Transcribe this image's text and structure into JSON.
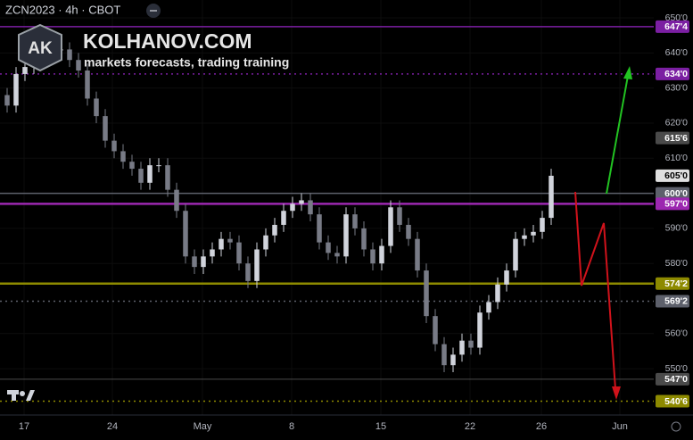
{
  "chart_data": {
    "type": "candlestick",
    "symbol": "ZCN2023 · 4h · CBOT",
    "brand": "KOLHANOV.COM",
    "brand_initials": "AK",
    "tagline": "markets forecasts, trading training",
    "x": [
      0,
      1,
      2,
      3,
      4,
      5,
      6,
      7,
      8,
      9,
      10,
      11,
      12,
      13,
      14,
      15,
      16,
      17,
      18,
      19,
      20,
      21,
      22,
      23,
      24,
      25,
      26,
      27,
      28,
      29,
      30,
      31,
      32,
      33,
      34,
      35,
      36,
      37,
      38,
      39,
      40,
      41,
      42,
      43,
      44,
      45,
      46,
      47,
      48,
      49,
      50,
      51,
      52,
      53,
      54,
      55,
      56,
      57,
      58,
      59,
      60,
      61
    ],
    "open": [
      628,
      625,
      634,
      636,
      638,
      640,
      641,
      641,
      638,
      635,
      627,
      622,
      615,
      612,
      609,
      607,
      603,
      608,
      608,
      601,
      595,
      582,
      579,
      582,
      584,
      587,
      586,
      580,
      575,
      584,
      588,
      591,
      595,
      597,
      598,
      594,
      586,
      583,
      582,
      594,
      590,
      584,
      580,
      585,
      596,
      591,
      587,
      578,
      565,
      557,
      551,
      554,
      558,
      556,
      566,
      569,
      574,
      578,
      587,
      588,
      589,
      593
    ],
    "high": [
      630,
      636,
      638,
      640,
      642,
      643,
      643,
      643,
      640,
      637,
      629,
      624,
      617,
      614,
      611,
      609,
      610,
      610,
      610,
      603,
      597,
      584,
      584,
      586,
      589,
      589,
      588,
      582,
      586,
      590,
      593,
      597,
      599,
      600,
      600,
      596,
      588,
      585,
      596,
      596,
      592,
      586,
      587,
      598,
      598,
      593,
      589,
      580,
      567,
      559,
      556,
      560,
      560,
      568,
      571,
      576,
      580,
      589,
      590,
      591,
      595,
      607
    ],
    "low": [
      623,
      623,
      632,
      634,
      636,
      638,
      639,
      636,
      633,
      625,
      620,
      613,
      610,
      607,
      605,
      601,
      601,
      606,
      599,
      593,
      580,
      577,
      577,
      580,
      582,
      584,
      578,
      573,
      573,
      582,
      586,
      589,
      593,
      595,
      592,
      584,
      581,
      580,
      580,
      588,
      582,
      578,
      578,
      583,
      589,
      585,
      576,
      563,
      555,
      549,
      549,
      552,
      554,
      554,
      564,
      567,
      572,
      576,
      585,
      586,
      587,
      591
    ],
    "close": [
      625,
      634,
      636,
      638,
      640,
      641,
      641,
      638,
      635,
      627,
      622,
      615,
      612,
      609,
      607,
      603,
      608,
      608,
      601,
      595,
      582,
      579,
      582,
      584,
      587,
      586,
      580,
      575,
      584,
      588,
      591,
      595,
      597,
      598,
      594,
      586,
      583,
      582,
      594,
      590,
      584,
      580,
      585,
      596,
      591,
      587,
      578,
      565,
      557,
      551,
      554,
      558,
      556,
      566,
      569,
      574,
      578,
      587,
      588,
      589,
      593,
      605
    ],
    "up_color": "#d1d4dc",
    "down_color": "#787b86",
    "xlim": [
      -0.8,
      72.5
    ],
    "xticks": [
      {
        "value": 1.9,
        "label": "17"
      },
      {
        "value": 11.8,
        "label": "24"
      },
      {
        "value": 21.9,
        "label": "May"
      },
      {
        "value": 31.9,
        "label": "8"
      },
      {
        "value": 41.9,
        "label": "15"
      },
      {
        "value": 51.9,
        "label": "22"
      },
      {
        "value": 59.9,
        "label": "26"
      },
      {
        "value": 68.7,
        "label": "Jun"
      }
    ],
    "ylim": [
      536.8,
      655.1
    ],
    "yticks": [
      {
        "value": 650,
        "label": "650'0"
      },
      {
        "value": 640,
        "label": "640'0"
      },
      {
        "value": 630,
        "label": "630'0"
      },
      {
        "value": 620,
        "label": "620'0"
      },
      {
        "value": 610,
        "label": "610'0"
      },
      {
        "value": 590,
        "label": "590'0"
      },
      {
        "value": 580,
        "label": "580'0"
      },
      {
        "value": 560,
        "label": "560'0"
      },
      {
        "value": 550,
        "label": "550'0"
      }
    ],
    "levels": [
      {
        "value": 647.5,
        "label": "647'4",
        "color": "#7b1fa2",
        "style": "solid"
      },
      {
        "value": 634,
        "label": "634'0",
        "color": "#7b1fa2",
        "style": "dotted"
      },
      {
        "value": 615.75,
        "label": "615'6",
        "color": "#4a4a4a",
        "style": "none"
      },
      {
        "value": 605,
        "label": "605'0",
        "color": "#e0e0e0",
        "style": "none"
      },
      {
        "value": 600,
        "label": "600'0",
        "color": "#5d606b",
        "style": "solid"
      },
      {
        "value": 597,
        "label": "597'0",
        "color": "#9c27b0",
        "style": "thick"
      },
      {
        "value": 574.25,
        "label": "574'2",
        "color": "#8d8a00",
        "style": "thick"
      },
      {
        "value": 569.25,
        "label": "569'2",
        "color": "#5d606b",
        "style": "dotted"
      },
      {
        "value": 547,
        "label": "547'0",
        "color": "#4a4a4a",
        "style": "thin"
      },
      {
        "value": 540.75,
        "label": "540'6",
        "color": "#8d8a00",
        "style": "dotted"
      }
    ]
  }
}
